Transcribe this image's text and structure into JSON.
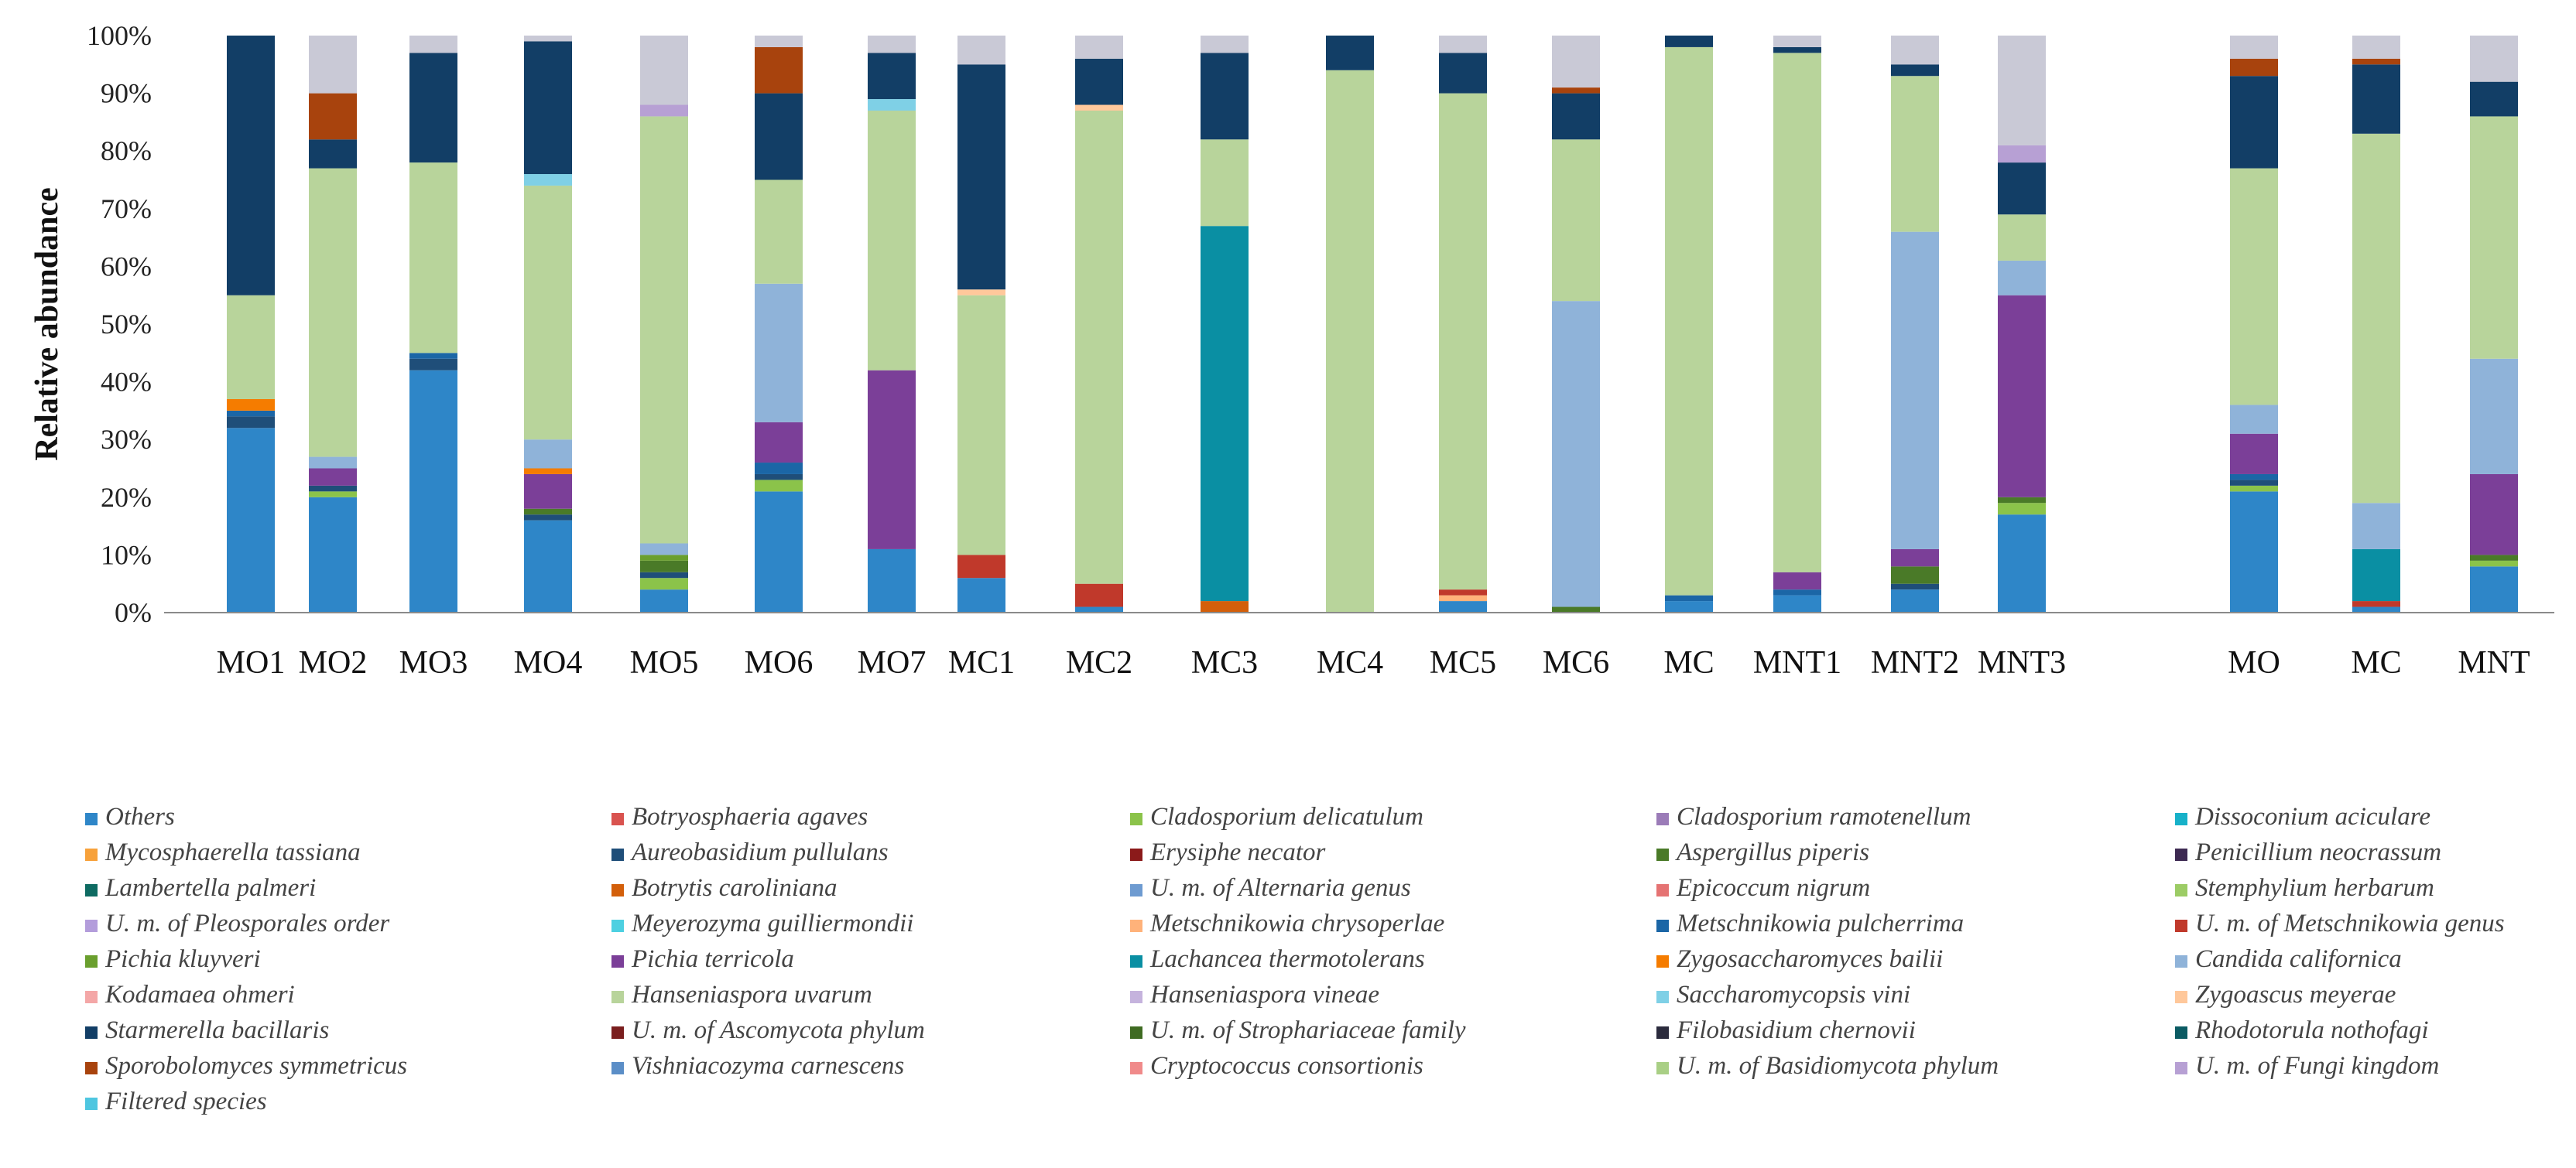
{
  "chart_data": {
    "type": "bar",
    "stacked": true,
    "ylabel": "Relative abundance",
    "ylim": [
      0,
      100
    ],
    "yticks": [
      "0%",
      "10%",
      "20%",
      "30%",
      "40%",
      "50%",
      "60%",
      "70%",
      "80%",
      "90%",
      "100%"
    ],
    "categories": [
      "MO1",
      "MO2",
      "MO3",
      "MO4",
      "MO5",
      "MO6",
      "MO7",
      "MC1",
      "MC2",
      "MC3",
      "MC4",
      "MC5",
      "MC6",
      "MC",
      "MNT1",
      "MNT2",
      "MNT3",
      "MO",
      "MC",
      "MNT"
    ],
    "legend_placement": "bottom",
    "series": [
      {
        "name": "Others",
        "color": "#2e86c8",
        "values": [
          32,
          20,
          42,
          16,
          4,
          21,
          11,
          6,
          1,
          0,
          0,
          2,
          0,
          2,
          3,
          4,
          17,
          21,
          1,
          8
        ]
      },
      {
        "name": "Botryosphaeria agaves",
        "color": "#d9534f",
        "values": [
          0,
          0,
          0,
          0,
          0,
          0,
          0,
          0,
          0,
          0,
          0,
          0,
          0,
          0,
          0,
          0,
          0,
          0,
          0,
          0
        ]
      },
      {
        "name": "Cladosporium delicatulum",
        "color": "#8bc34a",
        "values": [
          0,
          1,
          0,
          0,
          2,
          2,
          0,
          0,
          0,
          0,
          0,
          0,
          0,
          0,
          0,
          0,
          2,
          1,
          0,
          1
        ]
      },
      {
        "name": "Cladosporium ramotenellum",
        "color": "#9b7cb8",
        "values": [
          0,
          0,
          0,
          0,
          0,
          0,
          0,
          0,
          0,
          0,
          0,
          0,
          0,
          0,
          0,
          0,
          0,
          0,
          0,
          0
        ]
      },
      {
        "name": "Dissoconium aciculare",
        "color": "#17b1c9",
        "values": [
          0,
          0,
          0,
          0,
          0,
          0,
          0,
          0,
          0,
          0,
          0,
          0,
          0,
          0,
          0,
          0,
          0,
          0,
          0,
          0
        ]
      },
      {
        "name": "Mycosphaerella tassiana",
        "color": "#f7a13a",
        "values": [
          0,
          0,
          0,
          0,
          0,
          0,
          0,
          0,
          0,
          0,
          0,
          0,
          0,
          0,
          0,
          0,
          0,
          0,
          0,
          0
        ]
      },
      {
        "name": "Aureobasidium pullulans",
        "color": "#1f4e79",
        "values": [
          2,
          1,
          2,
          1,
          1,
          1,
          0,
          0,
          0,
          0,
          0,
          0,
          0,
          0,
          0,
          1,
          0,
          1,
          0,
          0
        ]
      },
      {
        "name": "Erysiphe necator",
        "color": "#8b1a1a",
        "values": [
          0,
          0,
          0,
          0,
          0,
          0,
          0,
          0,
          0,
          0,
          0,
          0,
          0,
          0,
          0,
          0,
          0,
          0,
          0,
          0
        ]
      },
      {
        "name": "Aspergillus piperis",
        "color": "#4a7a28",
        "values": [
          0,
          0,
          0,
          1,
          2,
          0,
          0,
          0,
          0,
          0,
          0,
          0,
          1,
          0,
          0,
          3,
          1,
          0,
          0,
          1
        ]
      },
      {
        "name": "Penicillium neocrassum",
        "color": "#3d2a52",
        "values": [
          0,
          0,
          0,
          0,
          0,
          0,
          0,
          0,
          0,
          0,
          0,
          0,
          0,
          0,
          0,
          0,
          0,
          0,
          0,
          0
        ]
      },
      {
        "name": "Lambertella palmeri",
        "color": "#0e6b62",
        "values": [
          0,
          0,
          0,
          0,
          0,
          0,
          0,
          0,
          0,
          0,
          0,
          0,
          0,
          0,
          0,
          0,
          0,
          0,
          0,
          0
        ]
      },
      {
        "name": "Botrytis caroliniana",
        "color": "#d35f0a",
        "values": [
          0,
          0,
          0,
          0,
          0,
          0,
          0,
          0,
          0,
          2,
          0,
          0,
          0,
          0,
          0,
          0,
          0,
          0,
          0,
          0
        ]
      },
      {
        "name": "U. m. of Alternaria genus",
        "color": "#6e9bd1",
        "values": [
          0,
          0,
          0,
          0,
          0,
          0,
          0,
          0,
          0,
          0,
          0,
          0,
          0,
          0,
          0,
          0,
          0,
          0,
          0,
          0
        ]
      },
      {
        "name": "Epicoccum nigrum",
        "color": "#e57373",
        "values": [
          0,
          0,
          0,
          0,
          0,
          0,
          0,
          0,
          0,
          0,
          0,
          0,
          0,
          0,
          0,
          0,
          0,
          0,
          0,
          0
        ]
      },
      {
        "name": "Stemphylium herbarum",
        "color": "#9ccc65",
        "values": [
          0,
          0,
          0,
          0,
          0,
          0,
          0,
          0,
          0,
          0,
          0,
          0,
          0,
          0,
          0,
          0,
          0,
          0,
          0,
          0
        ]
      },
      {
        "name": "U. m. of Pleosporales order",
        "color": "#b39ddb",
        "values": [
          0,
          0,
          0,
          0,
          0,
          0,
          0,
          0,
          0,
          0,
          0,
          0,
          0,
          0,
          0,
          0,
          0,
          0,
          0,
          0
        ]
      },
      {
        "name": "Meyerozyma guilliermondii",
        "color": "#4dd0e1",
        "values": [
          0,
          0,
          0,
          0,
          0,
          0,
          0,
          0,
          0,
          0,
          0,
          0,
          0,
          0,
          0,
          0,
          0,
          0,
          0,
          0
        ]
      },
      {
        "name": "Metschnikowia chrysoperlae",
        "color": "#ffb27a",
        "values": [
          0,
          0,
          0,
          0,
          0,
          0,
          0,
          0,
          0,
          0,
          0,
          1,
          0,
          0,
          0,
          0,
          0,
          0,
          0,
          0
        ]
      },
      {
        "name": "Metschnikowia pulcherrima",
        "color": "#1b66a6",
        "values": [
          1,
          0,
          1,
          0,
          0,
          2,
          0,
          0,
          0,
          0,
          0,
          0,
          0,
          1,
          1,
          0,
          0,
          1,
          0,
          0
        ]
      },
      {
        "name": "U. m. of Metschnikowia genus",
        "color": "#c0392b",
        "values": [
          0,
          0,
          0,
          0,
          0,
          0,
          0,
          4,
          4,
          0,
          0,
          1,
          0,
          0,
          0,
          0,
          0,
          0,
          1,
          0
        ]
      },
      {
        "name": "Pichia kluyveri",
        "color": "#6a9f2e",
        "values": [
          0,
          0,
          0,
          0,
          1,
          0,
          0,
          0,
          0,
          0,
          0,
          0,
          0,
          0,
          0,
          0,
          0,
          0,
          0,
          0
        ]
      },
      {
        "name": "Pichia terricola",
        "color": "#7b3f98",
        "values": [
          0,
          3,
          0,
          6,
          0,
          7,
          31,
          0,
          0,
          0,
          0,
          0,
          0,
          0,
          3,
          3,
          35,
          7,
          0,
          14
        ]
      },
      {
        "name": "Lachancea thermotolerans",
        "color": "#0a8fa3",
        "values": [
          0,
          0,
          0,
          0,
          0,
          0,
          0,
          0,
          0,
          65,
          0,
          0,
          0,
          0,
          0,
          0,
          0,
          0,
          9,
          0
        ]
      },
      {
        "name": "Zygosaccharomyces bailii",
        "color": "#f57c00",
        "values": [
          2,
          0,
          0,
          1,
          0,
          0,
          0,
          0,
          0,
          0,
          0,
          0,
          0,
          0,
          0,
          0,
          0,
          0,
          0,
          0
        ]
      },
      {
        "name": "Candida californica",
        "color": "#8fb3d9",
        "values": [
          0,
          2,
          0,
          5,
          2,
          24,
          0,
          0,
          0,
          0,
          0,
          0,
          53,
          0,
          0,
          55,
          6,
          5,
          8,
          20
        ]
      },
      {
        "name": "Kodamaea ohmeri",
        "color": "#f4a7a7",
        "values": [
          0,
          0,
          0,
          0,
          0,
          0,
          0,
          0,
          0,
          0,
          0,
          0,
          0,
          0,
          0,
          0,
          0,
          0,
          0,
          0
        ]
      },
      {
        "name": "Hanseniaspora uvarum",
        "color": "#b8d49b",
        "values": [
          18,
          50,
          33,
          44,
          74,
          18,
          45,
          45,
          82,
          15,
          94,
          86,
          28,
          95,
          90,
          27,
          8,
          41,
          64,
          42
        ]
      },
      {
        "name": "Hanseniaspora vineae",
        "color": "#c5b3dd",
        "values": [
          0,
          0,
          0,
          0,
          0,
          0,
          0,
          0,
          0,
          0,
          0,
          0,
          0,
          0,
          0,
          0,
          0,
          0,
          0,
          0
        ]
      },
      {
        "name": "Saccharomycopsis vini",
        "color": "#7fd0e6",
        "values": [
          0,
          0,
          0,
          2,
          0,
          0,
          2,
          0,
          0,
          0,
          0,
          0,
          0,
          0,
          0,
          0,
          0,
          0,
          0,
          0
        ]
      },
      {
        "name": "Zygoascus meyerae",
        "color": "#ffc89b",
        "values": [
          0,
          0,
          0,
          0,
          0,
          0,
          0,
          1,
          1,
          0,
          0,
          0,
          0,
          0,
          0,
          0,
          0,
          0,
          0,
          0
        ]
      },
      {
        "name": "Starmerella bacillaris",
        "color": "#123e66",
        "values": [
          45,
          5,
          19,
          23,
          0,
          15,
          8,
          39,
          8,
          15,
          6,
          7,
          8,
          2,
          1,
          2,
          9,
          16,
          12,
          6
        ]
      },
      {
        "name": "U. m. of Ascomycota phylum",
        "color": "#7a1e1e",
        "values": [
          0,
          0,
          0,
          0,
          0,
          0,
          0,
          0,
          0,
          0,
          0,
          0,
          0,
          0,
          0,
          0,
          0,
          0,
          0,
          0
        ]
      },
      {
        "name": "U. m. of Strophariaceae family",
        "color": "#3f6b22",
        "values": [
          0,
          0,
          0,
          0,
          0,
          0,
          0,
          0,
          0,
          0,
          0,
          0,
          0,
          0,
          0,
          0,
          0,
          0,
          0,
          0
        ]
      },
      {
        "name": "Filobasidium chernovii",
        "color": "#2b2b3d",
        "values": [
          0,
          0,
          0,
          0,
          0,
          0,
          0,
          0,
          0,
          0,
          0,
          0,
          0,
          0,
          0,
          0,
          0,
          0,
          0,
          0
        ]
      },
      {
        "name": "Rhodotorula nothofagi",
        "color": "#0b5b63",
        "values": [
          0,
          0,
          0,
          0,
          0,
          0,
          0,
          0,
          0,
          0,
          0,
          0,
          0,
          0,
          0,
          0,
          0,
          0,
          0,
          0
        ]
      },
      {
        "name": "Sporobolomyces symmetricus",
        "color": "#a8430d",
        "values": [
          0,
          8,
          0,
          0,
          0,
          8,
          0,
          0,
          0,
          0,
          0,
          0,
          1,
          0,
          0,
          0,
          0,
          3,
          1,
          0
        ]
      },
      {
        "name": "Vishniacozyma carnescens",
        "color": "#5b8ec7",
        "values": [
          0,
          0,
          0,
          0,
          0,
          0,
          0,
          0,
          0,
          0,
          0,
          0,
          0,
          0,
          0,
          0,
          0,
          0,
          0,
          0
        ]
      },
      {
        "name": "Cryptococcus consortionis",
        "color": "#f08a8a",
        "values": [
          0,
          0,
          0,
          0,
          0,
          0,
          0,
          0,
          0,
          0,
          0,
          0,
          0,
          0,
          0,
          0,
          0,
          0,
          0,
          0
        ]
      },
      {
        "name": "U. m. of Basidiomycota phylum",
        "color": "#a9cf85",
        "values": [
          0,
          0,
          0,
          0,
          0,
          0,
          0,
          0,
          0,
          0,
          0,
          0,
          0,
          0,
          0,
          0,
          0,
          0,
          0,
          0
        ]
      },
      {
        "name": "U. m. of Fungi kingdom",
        "color": "#b7a0d4",
        "values": [
          0,
          0,
          0,
          0,
          2,
          0,
          0,
          0,
          0,
          0,
          0,
          0,
          0,
          0,
          0,
          0,
          3,
          0,
          0,
          0
        ]
      },
      {
        "name": "Filtered species",
        "color": "#4ec6e0",
        "values": [
          0,
          0,
          0,
          0,
          0,
          0,
          0,
          0,
          0,
          0,
          0,
          0,
          0,
          0,
          0,
          0,
          0,
          0,
          0,
          0
        ]
      }
    ]
  }
}
